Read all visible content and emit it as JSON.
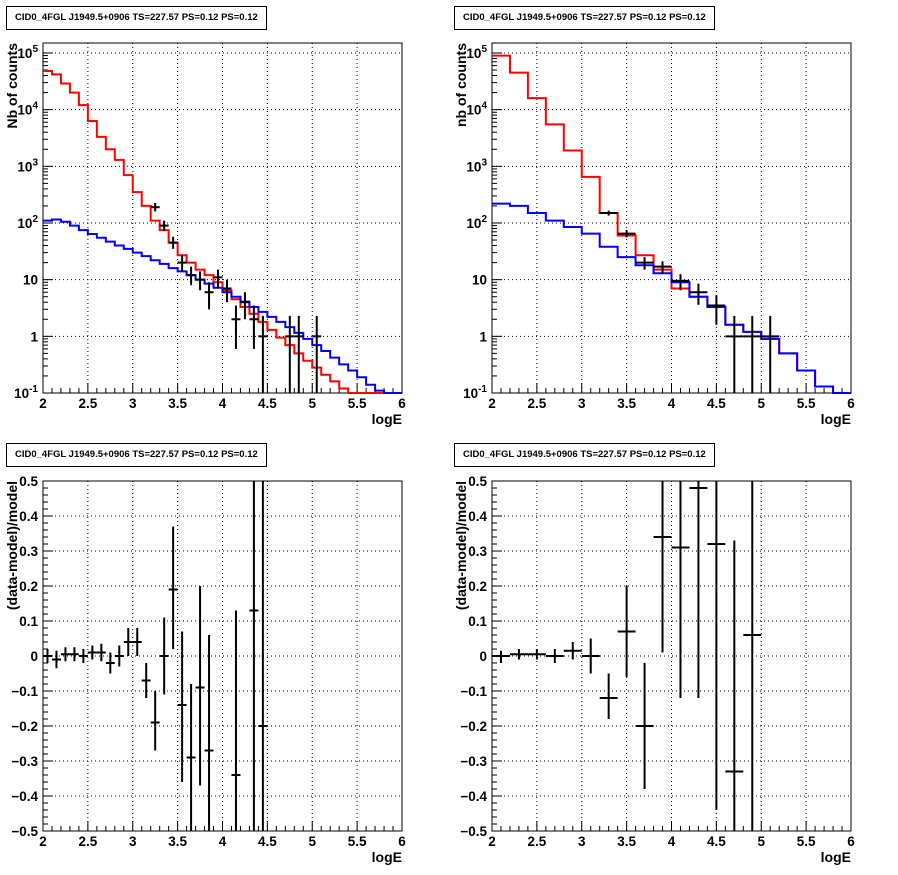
{
  "chart_data": [
    {
      "type": "line",
      "title": "CID0_4FGL J1949.5+0906 TS=227.57 PS=0.12 PS=0.12",
      "xlabel": "logE",
      "ylabel": "Nb of counts",
      "yscale": "log",
      "xlim": [
        2,
        6
      ],
      "ylim": [
        0.1,
        150000
      ],
      "grid": true,
      "x_ticks": [
        "2",
        "2.5",
        "3",
        "3.5",
        "4",
        "4.5",
        "5",
        "5.5",
        "6"
      ],
      "y_ticks": [
        "10^-1",
        "1",
        "10",
        "10^2",
        "10^3",
        "10^4",
        "10^5"
      ],
      "series": [
        {
          "color": "#ff0000",
          "style": "histogram",
          "edges": [
            2.0,
            2.1,
            2.2,
            2.3,
            2.4,
            2.5,
            2.6,
            2.7,
            2.8,
            2.9,
            3.0,
            3.1,
            3.2,
            3.3,
            3.4,
            3.5,
            3.6,
            3.7,
            3.8,
            3.9,
            4.0,
            4.1,
            4.2,
            4.3,
            4.4,
            4.5,
            4.6,
            4.7,
            4.8,
            4.9,
            5.0,
            5.1,
            5.2,
            5.3,
            5.4,
            5.5,
            5.6,
            5.7,
            5.8,
            5.9,
            6.0
          ],
          "values": [
            48000,
            42000,
            29000,
            20000,
            12000,
            6300,
            3300,
            2000,
            1300,
            700,
            350,
            200,
            110,
            75,
            45,
            27,
            20,
            15,
            12,
            9,
            6.5,
            4.5,
            3.3,
            2.5,
            1.8,
            1.3,
            0.95,
            0.7,
            0.5,
            0.37,
            0.28,
            0.21,
            0.16,
            0.12,
            0.1,
            0.1,
            0.1,
            0.1,
            0.1,
            0.1
          ]
        },
        {
          "color": "#0000ff",
          "style": "histogram",
          "edges": [
            2.0,
            2.1,
            2.2,
            2.3,
            2.4,
            2.5,
            2.6,
            2.7,
            2.8,
            2.9,
            3.0,
            3.1,
            3.2,
            3.3,
            3.4,
            3.5,
            3.6,
            3.7,
            3.8,
            3.9,
            4.0,
            4.1,
            4.2,
            4.3,
            4.4,
            4.5,
            4.6,
            4.7,
            4.8,
            4.9,
            5.0,
            5.1,
            5.2,
            5.3,
            5.4,
            5.5,
            5.6,
            5.7,
            5.8,
            5.9,
            6.0
          ],
          "values": [
            110,
            115,
            105,
            90,
            75,
            64,
            55,
            47,
            40,
            35,
            30,
            26,
            22,
            19,
            16,
            14,
            12,
            10,
            8.5,
            7.2,
            6,
            5,
            4.1,
            3.3,
            2.7,
            2.2,
            1.8,
            1.45,
            1.15,
            0.9,
            0.7,
            0.55,
            0.42,
            0.32,
            0.25,
            0.19,
            0.14,
            0.11,
            0.1,
            0.1
          ]
        },
        {
          "color": "#000000",
          "style": "points",
          "points": [
            {
              "x": 3.25,
              "y": 190,
              "lo": 160,
              "hi": 225
            },
            {
              "x": 3.35,
              "y": 90,
              "lo": 72,
              "hi": 110
            },
            {
              "x": 3.45,
              "y": 45,
              "lo": 35,
              "hi": 57
            },
            {
              "x": 3.55,
              "y": 20,
              "lo": 14,
              "hi": 27
            },
            {
              "x": 3.65,
              "y": 12,
              "lo": 8,
              "hi": 17
            },
            {
              "x": 3.75,
              "y": 10,
              "lo": 6.5,
              "hi": 14
            },
            {
              "x": 3.85,
              "y": 6,
              "lo": 3,
              "hi": 9
            },
            {
              "x": 3.95,
              "y": 11,
              "lo": 7,
              "hi": 15
            },
            {
              "x": 4.05,
              "y": 7,
              "lo": 4,
              "hi": 10
            },
            {
              "x": 4.15,
              "y": 2,
              "lo": 0.6,
              "hi": 3.5
            },
            {
              "x": 4.25,
              "y": 4,
              "lo": 2,
              "hi": 6
            },
            {
              "x": 4.35,
              "y": 2,
              "lo": 0.6,
              "hi": 3.5
            },
            {
              "x": 4.45,
              "y": 1,
              "lo": 0.1,
              "hi": 2.3
            },
            {
              "x": 4.75,
              "y": 1,
              "lo": 0.1,
              "hi": 2.3
            },
            {
              "x": 4.85,
              "y": 1,
              "lo": 0.1,
              "hi": 2.3
            },
            {
              "x": 5.05,
              "y": 1,
              "lo": 0.1,
              "hi": 2.3
            }
          ]
        }
      ]
    },
    {
      "type": "line",
      "title": "CID0_4FGL J1949.5+0906 TS=227.57 PS=0.12 PS=0.12",
      "xlabel": "logE",
      "ylabel": "nb of counts",
      "yscale": "log",
      "xlim": [
        2,
        6
      ],
      "ylim": [
        0.1,
        150000
      ],
      "grid": true,
      "x_ticks": [
        "2",
        "2.5",
        "3",
        "3.5",
        "4",
        "4.5",
        "5",
        "5.5",
        "6"
      ],
      "y_ticks": [
        "10^-1",
        "1",
        "10",
        "10^2",
        "10^3",
        "10^4",
        "10^5"
      ],
      "series": [
        {
          "color": "#ff0000",
          "style": "histogram",
          "edges": [
            2.0,
            2.2,
            2.4,
            2.6,
            2.8,
            3.0,
            3.2,
            3.4,
            3.6,
            3.8,
            4.0,
            4.2,
            4.4,
            4.6,
            4.8,
            5.0,
            5.2,
            5.4,
            5.6,
            5.8,
            6.0
          ],
          "values": [
            90000,
            45000,
            16000,
            5500,
            1900,
            650,
            150,
            60,
            27,
            15,
            7,
            5,
            3.3,
            1.6,
            1.2,
            0.9,
            0.5,
            0.25,
            0.13,
            0.1
          ]
        },
        {
          "color": "#0000ff",
          "style": "histogram",
          "edges": [
            2.0,
            2.2,
            2.4,
            2.6,
            2.8,
            3.0,
            3.2,
            3.4,
            3.6,
            3.8,
            4.0,
            4.2,
            4.4,
            4.6,
            4.8,
            5.0,
            5.2,
            5.4,
            5.6,
            5.8,
            6.0
          ],
          "values": [
            220,
            200,
            150,
            110,
            85,
            65,
            38,
            25,
            18,
            13,
            9,
            5,
            3.3,
            1.6,
            1.2,
            0.9,
            0.5,
            0.25,
            0.13,
            0.1
          ]
        },
        {
          "color": "#000000",
          "style": "points",
          "points": [
            {
              "x": 3.3,
              "y": 150,
              "lo": 135,
              "hi": 165
            },
            {
              "x": 3.5,
              "y": 65,
              "lo": 56,
              "hi": 75
            },
            {
              "x": 3.7,
              "y": 20,
              "lo": 15,
              "hi": 25
            },
            {
              "x": 3.9,
              "y": 17,
              "lo": 13,
              "hi": 21
            },
            {
              "x": 4.1,
              "y": 9.5,
              "lo": 6.5,
              "hi": 12.5
            },
            {
              "x": 4.3,
              "y": 6,
              "lo": 3.6,
              "hi": 8.5
            },
            {
              "x": 4.5,
              "y": 3.5,
              "lo": 1.6,
              "hi": 5.3
            },
            {
              "x": 4.7,
              "y": 1,
              "lo": 0.1,
              "hi": 2.3
            },
            {
              "x": 4.9,
              "y": 1,
              "lo": 0.1,
              "hi": 2.3
            },
            {
              "x": 5.1,
              "y": 1,
              "lo": 0.1,
              "hi": 2.3
            }
          ]
        }
      ]
    },
    {
      "type": "scatter",
      "title": "CID0_4FGL J1949.5+0906 TS=227.57 PS=0.12 PS=0.12",
      "xlabel": "logE",
      "ylabel": "(data-model)/model",
      "xlim": [
        2,
        6
      ],
      "ylim": [
        -0.5,
        0.5
      ],
      "grid": true,
      "x_ticks": [
        "2",
        "2.5",
        "3",
        "3.5",
        "4",
        "4.5",
        "5",
        "5.5",
        "6"
      ],
      "y_ticks": [
        "−0.5",
        "−0.4",
        "−0.3",
        "−0.2",
        "−0.1",
        "0",
        "0.1",
        "0.2",
        "0.3",
        "0.4",
        "0.5"
      ],
      "series": [
        {
          "color": "#000000",
          "style": "points",
          "points": [
            {
              "x": 2.05,
              "y": 0.0,
              "lo": -0.02,
              "hi": 0.02
            },
            {
              "x": 2.15,
              "y": -0.01,
              "lo": -0.035,
              "hi": 0.015
            },
            {
              "x": 2.25,
              "y": 0.005,
              "lo": -0.015,
              "hi": 0.025
            },
            {
              "x": 2.35,
              "y": 0.005,
              "lo": -0.015,
              "hi": 0.025
            },
            {
              "x": 2.45,
              "y": 0.0,
              "lo": -0.02,
              "hi": 0.02
            },
            {
              "x": 2.55,
              "y": 0.01,
              "lo": -0.01,
              "hi": 0.03
            },
            {
              "x": 2.65,
              "y": 0.01,
              "lo": -0.015,
              "hi": 0.035
            },
            {
              "x": 2.75,
              "y": -0.02,
              "lo": -0.05,
              "hi": 0.01
            },
            {
              "x": 2.85,
              "y": 0.0,
              "lo": -0.03,
              "hi": 0.03
            },
            {
              "x": 2.95,
              "y": 0.04,
              "lo": 0.0,
              "hi": 0.08
            },
            {
              "x": 3.05,
              "y": 0.04,
              "lo": 0.0,
              "hi": 0.08
            },
            {
              "x": 3.15,
              "y": -0.07,
              "lo": -0.12,
              "hi": -0.02
            },
            {
              "x": 3.25,
              "y": -0.19,
              "lo": -0.27,
              "hi": -0.1
            },
            {
              "x": 3.35,
              "y": 0.0,
              "lo": -0.11,
              "hi": 0.11
            },
            {
              "x": 3.45,
              "y": 0.19,
              "lo": 0.02,
              "hi": 0.37
            },
            {
              "x": 3.55,
              "y": -0.14,
              "lo": -0.36,
              "hi": 0.07
            },
            {
              "x": 3.65,
              "y": -0.29,
              "lo": -0.5,
              "hi": -0.08
            },
            {
              "x": 3.75,
              "y": -0.09,
              "lo": -0.37,
              "hi": 0.2
            },
            {
              "x": 3.85,
              "y": -0.27,
              "lo": -0.5,
              "hi": 0.06
            },
            {
              "x": 4.15,
              "y": -0.34,
              "lo": -0.5,
              "hi": 0.13
            },
            {
              "x": 4.35,
              "y": 0.13,
              "lo": -0.5,
              "hi": 0.5
            },
            {
              "x": 4.45,
              "y": -0.2,
              "lo": -0.5,
              "hi": 0.5
            }
          ]
        }
      ]
    },
    {
      "type": "scatter",
      "title": "CID0_4FGL J1949.5+0906 TS=227.57 PS=0.12 PS=0.12",
      "xlabel": "logE",
      "ylabel": "(data-model)/model",
      "xlim": [
        2,
        6
      ],
      "ylim": [
        -0.5,
        0.5
      ],
      "grid": true,
      "x_ticks": [
        "2",
        "2.5",
        "3",
        "3.5",
        "4",
        "4.5",
        "5",
        "5.5",
        "6"
      ],
      "y_ticks": [
        "−0.5",
        "−0.4",
        "−0.3",
        "−0.2",
        "−0.1",
        "0",
        "0.1",
        "0.2",
        "0.3",
        "0.4",
        "0.5"
      ],
      "series": [
        {
          "color": "#000000",
          "style": "points",
          "points": [
            {
              "x": 2.1,
              "y": 0.0,
              "lo": -0.02,
              "hi": 0.015
            },
            {
              "x": 2.3,
              "y": 0.005,
              "lo": -0.01,
              "hi": 0.02
            },
            {
              "x": 2.5,
              "y": 0.005,
              "lo": -0.01,
              "hi": 0.02
            },
            {
              "x": 2.7,
              "y": 0.0,
              "lo": -0.02,
              "hi": 0.02
            },
            {
              "x": 2.9,
              "y": 0.015,
              "lo": -0.01,
              "hi": 0.04
            },
            {
              "x": 3.1,
              "y": 0.0,
              "lo": -0.05,
              "hi": 0.05
            },
            {
              "x": 3.3,
              "y": -0.12,
              "lo": -0.18,
              "hi": -0.05
            },
            {
              "x": 3.5,
              "y": 0.07,
              "lo": -0.06,
              "hi": 0.2
            },
            {
              "x": 3.7,
              "y": -0.2,
              "lo": -0.38,
              "hi": -0.02
            },
            {
              "x": 3.9,
              "y": 0.34,
              "lo": 0.01,
              "hi": 0.5
            },
            {
              "x": 4.1,
              "y": 0.31,
              "lo": -0.12,
              "hi": 0.5
            },
            {
              "x": 4.3,
              "y": 0.48,
              "lo": -0.12,
              "hi": 0.5
            },
            {
              "x": 4.5,
              "y": 0.32,
              "lo": -0.44,
              "hi": 0.5
            },
            {
              "x": 4.7,
              "y": -0.33,
              "lo": -0.5,
              "hi": 0.33
            },
            {
              "x": 4.9,
              "y": 0.06,
              "lo": -0.5,
              "hi": 0.5
            }
          ]
        }
      ]
    }
  ]
}
